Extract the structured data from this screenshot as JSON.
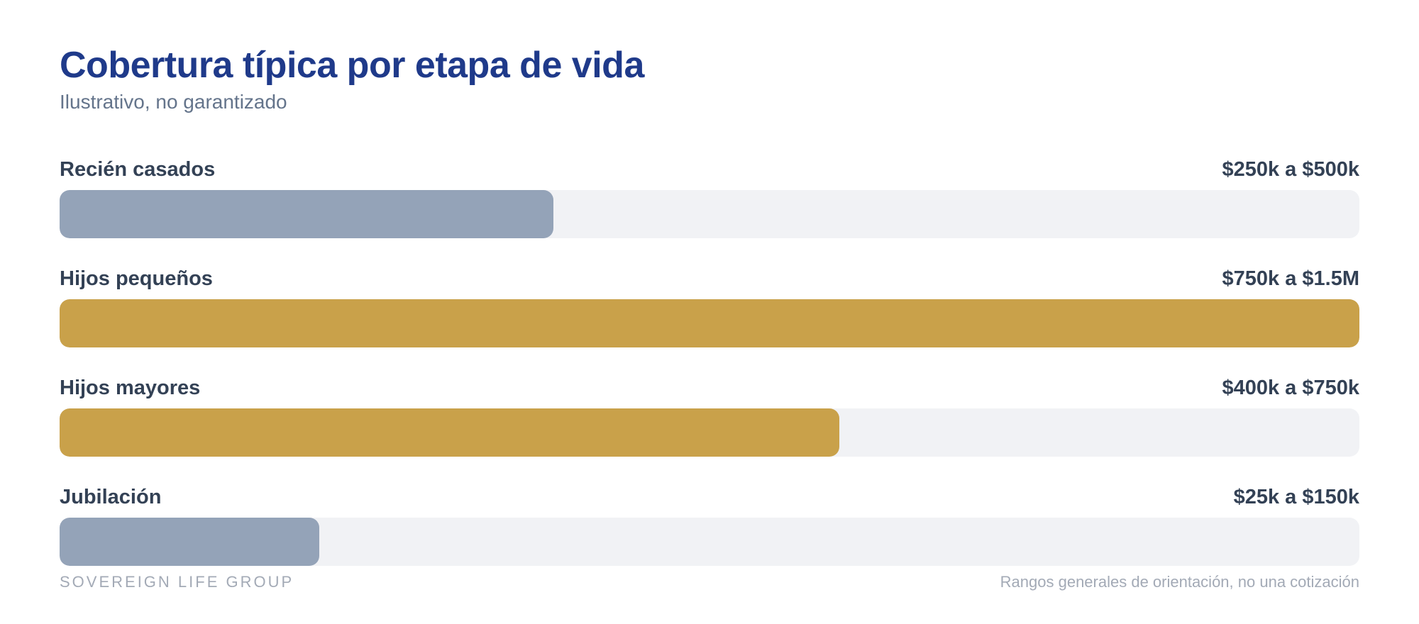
{
  "chart_data": {
    "type": "bar",
    "orientation": "horizontal",
    "title": "Cobertura típica por etapa de vida",
    "subtitle": "Ilustrativo, no garantizado",
    "categories": [
      "Recién casados",
      "Hijos pequeños",
      "Hijos mayores",
      "Jubilación"
    ],
    "range_labels": [
      "$250k a $500k",
      "$750k a $1.5M",
      "$400k a $750k",
      "$25k a $150k"
    ],
    "values": [
      0.38,
      1.0,
      0.6,
      0.2
    ],
    "value_unit": "fraction of track filled",
    "bar_colors": [
      "#94a3b8",
      "#c9a14a",
      "#c9a14a",
      "#94a3b8"
    ],
    "track_color": "#f1f2f5",
    "grid": false,
    "legend": "none"
  },
  "footer": {
    "brand": "SOVEREIGN LIFE GROUP",
    "note": "Rangos generales de orientación, no una cotización"
  },
  "colors": {
    "title": "#1f3a8a",
    "subtitle": "#64748b",
    "label": "#334155",
    "footer": "#a3aab6"
  }
}
